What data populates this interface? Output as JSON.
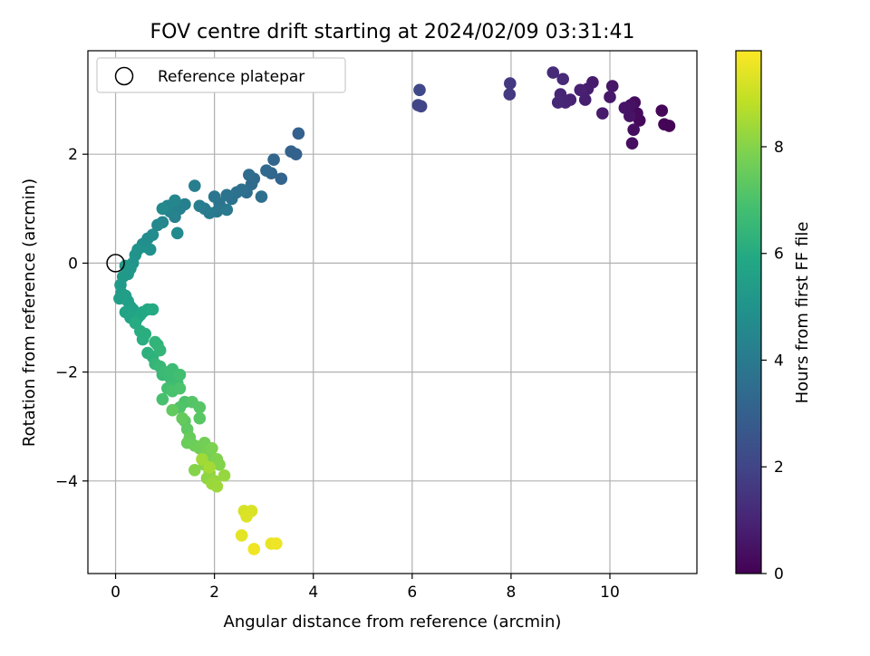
{
  "chart_data": {
    "type": "scatter",
    "title": "FOV centre drift starting at 2024/02/09 03:31:41",
    "xlabel": "Angular distance from reference (arcmin)",
    "ylabel": "Rotation from reference (arcmin)",
    "xlim": [
      -0.56,
      11.76
    ],
    "ylim": [
      -5.7,
      3.9
    ],
    "xticks": [
      0,
      2,
      4,
      6,
      8,
      10
    ],
    "yticks": [
      -4,
      -2,
      0,
      2
    ],
    "grid": true,
    "legend": {
      "placement": "top-left",
      "entries": [
        {
          "label": "Reference platepar",
          "marker": "open-circle"
        }
      ]
    },
    "reference_point": {
      "x": 0,
      "y": 0
    },
    "colorbar": {
      "label": "Hours from first FF file",
      "colormap": "viridis",
      "range": [
        0,
        9.8
      ],
      "ticks": [
        0,
        2,
        4,
        6,
        8
      ]
    },
    "points": [
      {
        "x": 11.2,
        "y": 2.52,
        "h": 0.05
      },
      {
        "x": 11.1,
        "y": 2.55,
        "h": 0.1
      },
      {
        "x": 11.05,
        "y": 2.8,
        "h": 0.15
      },
      {
        "x": 10.6,
        "y": 2.62,
        "h": 0.2
      },
      {
        "x": 10.55,
        "y": 2.75,
        "h": 0.25
      },
      {
        "x": 10.5,
        "y": 2.95,
        "h": 0.3
      },
      {
        "x": 10.48,
        "y": 2.45,
        "h": 0.35
      },
      {
        "x": 10.45,
        "y": 2.2,
        "h": 0.4
      },
      {
        "x": 10.42,
        "y": 2.9,
        "h": 0.45
      },
      {
        "x": 10.4,
        "y": 2.7,
        "h": 0.5
      },
      {
        "x": 10.3,
        "y": 2.85,
        "h": 0.55
      },
      {
        "x": 10.05,
        "y": 3.25,
        "h": 0.6
      },
      {
        "x": 10.0,
        "y": 3.05,
        "h": 0.65
      },
      {
        "x": 9.85,
        "y": 2.75,
        "h": 0.7
      },
      {
        "x": 9.65,
        "y": 3.32,
        "h": 0.75
      },
      {
        "x": 9.55,
        "y": 3.2,
        "h": 0.8
      },
      {
        "x": 9.5,
        "y": 3.0,
        "h": 0.85
      },
      {
        "x": 9.4,
        "y": 3.18,
        "h": 0.9
      },
      {
        "x": 9.2,
        "y": 3.0,
        "h": 0.95
      },
      {
        "x": 9.1,
        "y": 2.95,
        "h": 1.0
      },
      {
        "x": 9.0,
        "y": 3.1,
        "h": 1.05
      },
      {
        "x": 8.95,
        "y": 2.95,
        "h": 1.1
      },
      {
        "x": 9.05,
        "y": 3.38,
        "h": 1.15
      },
      {
        "x": 8.85,
        "y": 3.5,
        "h": 1.2
      },
      {
        "x": 7.98,
        "y": 3.3,
        "h": 1.6
      },
      {
        "x": 7.97,
        "y": 3.1,
        "h": 1.65
      },
      {
        "x": 6.18,
        "y": 2.88,
        "h": 2.0
      },
      {
        "x": 6.12,
        "y": 2.9,
        "h": 2.05
      },
      {
        "x": 6.15,
        "y": 3.18,
        "h": 2.1
      },
      {
        "x": 3.7,
        "y": 2.38,
        "h": 3.0
      },
      {
        "x": 3.65,
        "y": 2.0,
        "h": 3.05
      },
      {
        "x": 3.55,
        "y": 2.05,
        "h": 3.1
      },
      {
        "x": 3.35,
        "y": 1.55,
        "h": 3.15
      },
      {
        "x": 3.2,
        "y": 1.9,
        "h": 3.2
      },
      {
        "x": 3.15,
        "y": 1.65,
        "h": 3.25
      },
      {
        "x": 3.05,
        "y": 1.7,
        "h": 3.3
      },
      {
        "x": 2.8,
        "y": 1.55,
        "h": 3.35
      },
      {
        "x": 2.75,
        "y": 1.45,
        "h": 3.4
      },
      {
        "x": 2.7,
        "y": 1.62,
        "h": 3.45
      },
      {
        "x": 2.65,
        "y": 1.3,
        "h": 3.5
      },
      {
        "x": 2.95,
        "y": 1.22,
        "h": 3.55
      },
      {
        "x": 2.55,
        "y": 1.35,
        "h": 3.6
      },
      {
        "x": 2.45,
        "y": 1.3,
        "h": 3.65
      },
      {
        "x": 2.35,
        "y": 1.18,
        "h": 3.7
      },
      {
        "x": 2.25,
        "y": 1.25,
        "h": 3.75
      },
      {
        "x": 2.1,
        "y": 1.1,
        "h": 3.8
      },
      {
        "x": 2.0,
        "y": 1.22,
        "h": 3.85
      },
      {
        "x": 2.05,
        "y": 0.95,
        "h": 3.9
      },
      {
        "x": 2.25,
        "y": 0.98,
        "h": 3.95
      },
      {
        "x": 1.9,
        "y": 0.92,
        "h": 4.0
      },
      {
        "x": 1.8,
        "y": 1.0,
        "h": 4.05
      },
      {
        "x": 1.7,
        "y": 1.05,
        "h": 4.1
      },
      {
        "x": 1.6,
        "y": 1.42,
        "h": 4.15
      },
      {
        "x": 1.4,
        "y": 1.08,
        "h": 4.2
      },
      {
        "x": 1.3,
        "y": 1.0,
        "h": 4.25
      },
      {
        "x": 1.2,
        "y": 0.85,
        "h": 4.3
      },
      {
        "x": 1.1,
        "y": 0.95,
        "h": 4.35
      },
      {
        "x": 1.05,
        "y": 1.05,
        "h": 4.4
      },
      {
        "x": 1.2,
        "y": 1.15,
        "h": 4.45
      },
      {
        "x": 0.95,
        "y": 0.75,
        "h": 4.5
      },
      {
        "x": 0.85,
        "y": 0.7,
        "h": 4.55
      },
      {
        "x": 0.95,
        "y": 1.0,
        "h": 4.6
      },
      {
        "x": 1.25,
        "y": 0.55,
        "h": 4.65
      },
      {
        "x": 0.75,
        "y": 0.52,
        "h": 4.7
      },
      {
        "x": 0.65,
        "y": 0.45,
        "h": 4.75
      },
      {
        "x": 0.55,
        "y": 0.35,
        "h": 4.8
      },
      {
        "x": 0.6,
        "y": 0.3,
        "h": 4.85
      },
      {
        "x": 0.7,
        "y": 0.25,
        "h": 4.9
      },
      {
        "x": 0.45,
        "y": 0.25,
        "h": 4.95
      },
      {
        "x": 0.4,
        "y": 0.15,
        "h": 5.0
      },
      {
        "x": 0.35,
        "y": 0.0,
        "h": 5.05
      },
      {
        "x": 0.3,
        "y": -0.1,
        "h": 5.1
      },
      {
        "x": 0.25,
        "y": -0.2,
        "h": 5.15
      },
      {
        "x": 0.2,
        "y": -0.05,
        "h": 5.2
      },
      {
        "x": 0.15,
        "y": -0.25,
        "h": 5.25
      },
      {
        "x": 0.1,
        "y": -0.4,
        "h": 5.3
      },
      {
        "x": 0.12,
        "y": -0.55,
        "h": 5.35
      },
      {
        "x": 0.08,
        "y": -0.65,
        "h": 5.4
      },
      {
        "x": 0.2,
        "y": -0.6,
        "h": 5.45
      },
      {
        "x": 0.25,
        "y": -0.7,
        "h": 5.5
      },
      {
        "x": 0.3,
        "y": -0.8,
        "h": 5.55
      },
      {
        "x": 0.35,
        "y": -0.85,
        "h": 5.6
      },
      {
        "x": 0.2,
        "y": -0.9,
        "h": 5.65
      },
      {
        "x": 0.3,
        "y": -1.0,
        "h": 5.7
      },
      {
        "x": 0.45,
        "y": -1.0,
        "h": 5.75
      },
      {
        "x": 0.5,
        "y": -0.95,
        "h": 5.8
      },
      {
        "x": 0.55,
        "y": -0.9,
        "h": 5.85
      },
      {
        "x": 0.65,
        "y": -0.85,
        "h": 5.9
      },
      {
        "x": 0.75,
        "y": -0.85,
        "h": 5.95
      },
      {
        "x": 0.4,
        "y": -1.1,
        "h": 6.0
      },
      {
        "x": 0.5,
        "y": -1.25,
        "h": 6.05
      },
      {
        "x": 0.55,
        "y": -1.4,
        "h": 6.1
      },
      {
        "x": 0.6,
        "y": -1.3,
        "h": 6.15
      },
      {
        "x": 0.65,
        "y": -1.65,
        "h": 6.2
      },
      {
        "x": 0.75,
        "y": -1.72,
        "h": 6.25
      },
      {
        "x": 0.85,
        "y": -1.5,
        "h": 6.3
      },
      {
        "x": 0.8,
        "y": -1.45,
        "h": 6.35
      },
      {
        "x": 0.9,
        "y": -1.6,
        "h": 6.4
      },
      {
        "x": 0.8,
        "y": -1.85,
        "h": 6.45
      },
      {
        "x": 0.9,
        "y": -1.9,
        "h": 6.5
      },
      {
        "x": 0.95,
        "y": -2.05,
        "h": 6.55
      },
      {
        "x": 1.0,
        "y": -2.0,
        "h": 6.6
      },
      {
        "x": 1.1,
        "y": -2.1,
        "h": 6.65
      },
      {
        "x": 1.15,
        "y": -1.95,
        "h": 6.7
      },
      {
        "x": 1.25,
        "y": -2.2,
        "h": 6.75
      },
      {
        "x": 1.3,
        "y": -2.05,
        "h": 6.8
      },
      {
        "x": 1.05,
        "y": -2.3,
        "h": 6.85
      },
      {
        "x": 0.95,
        "y": -2.5,
        "h": 6.9
      },
      {
        "x": 1.15,
        "y": -2.35,
        "h": 6.95
      },
      {
        "x": 1.3,
        "y": -2.3,
        "h": 7.0
      },
      {
        "x": 1.4,
        "y": -2.55,
        "h": 7.05
      },
      {
        "x": 1.3,
        "y": -2.65,
        "h": 7.1
      },
      {
        "x": 1.55,
        "y": -2.55,
        "h": 7.15
      },
      {
        "x": 1.7,
        "y": -2.65,
        "h": 7.2
      },
      {
        "x": 1.7,
        "y": -2.85,
        "h": 7.25
      },
      {
        "x": 1.4,
        "y": -2.9,
        "h": 7.3
      },
      {
        "x": 1.45,
        "y": -3.05,
        "h": 7.35
      },
      {
        "x": 1.15,
        "y": -2.7,
        "h": 7.4
      },
      {
        "x": 1.35,
        "y": -2.85,
        "h": 7.45
      },
      {
        "x": 1.5,
        "y": -3.2,
        "h": 7.5
      },
      {
        "x": 1.45,
        "y": -3.3,
        "h": 7.55
      },
      {
        "x": 1.6,
        "y": -3.35,
        "h": 7.6
      },
      {
        "x": 1.7,
        "y": -3.4,
        "h": 7.65
      },
      {
        "x": 1.8,
        "y": -3.3,
        "h": 7.7
      },
      {
        "x": 1.85,
        "y": -3.45,
        "h": 7.75
      },
      {
        "x": 1.9,
        "y": -3.55,
        "h": 7.8
      },
      {
        "x": 1.95,
        "y": -3.4,
        "h": 7.85
      },
      {
        "x": 2.05,
        "y": -3.6,
        "h": 7.9
      },
      {
        "x": 2.1,
        "y": -3.7,
        "h": 7.95
      },
      {
        "x": 1.6,
        "y": -3.8,
        "h": 8.0
      },
      {
        "x": 1.8,
        "y": -3.7,
        "h": 8.05
      },
      {
        "x": 1.85,
        "y": -3.95,
        "h": 8.1
      },
      {
        "x": 1.9,
        "y": -3.85,
        "h": 8.15
      },
      {
        "x": 2.0,
        "y": -4.0,
        "h": 8.2
      },
      {
        "x": 2.2,
        "y": -3.9,
        "h": 8.25
      },
      {
        "x": 1.95,
        "y": -4.05,
        "h": 8.3
      },
      {
        "x": 2.05,
        "y": -4.1,
        "h": 8.35
      },
      {
        "x": 1.75,
        "y": -3.6,
        "h": 8.4
      },
      {
        "x": 1.9,
        "y": -3.75,
        "h": 8.45
      },
      {
        "x": 2.6,
        "y": -4.55,
        "h": 9.2
      },
      {
        "x": 2.75,
        "y": -4.55,
        "h": 9.25
      },
      {
        "x": 2.65,
        "y": -4.65,
        "h": 9.3
      },
      {
        "x": 2.55,
        "y": -5.0,
        "h": 9.4
      },
      {
        "x": 3.15,
        "y": -5.15,
        "h": 9.5
      },
      {
        "x": 3.25,
        "y": -5.15,
        "h": 9.55
      },
      {
        "x": 2.8,
        "y": -5.25,
        "h": 9.6
      }
    ]
  }
}
